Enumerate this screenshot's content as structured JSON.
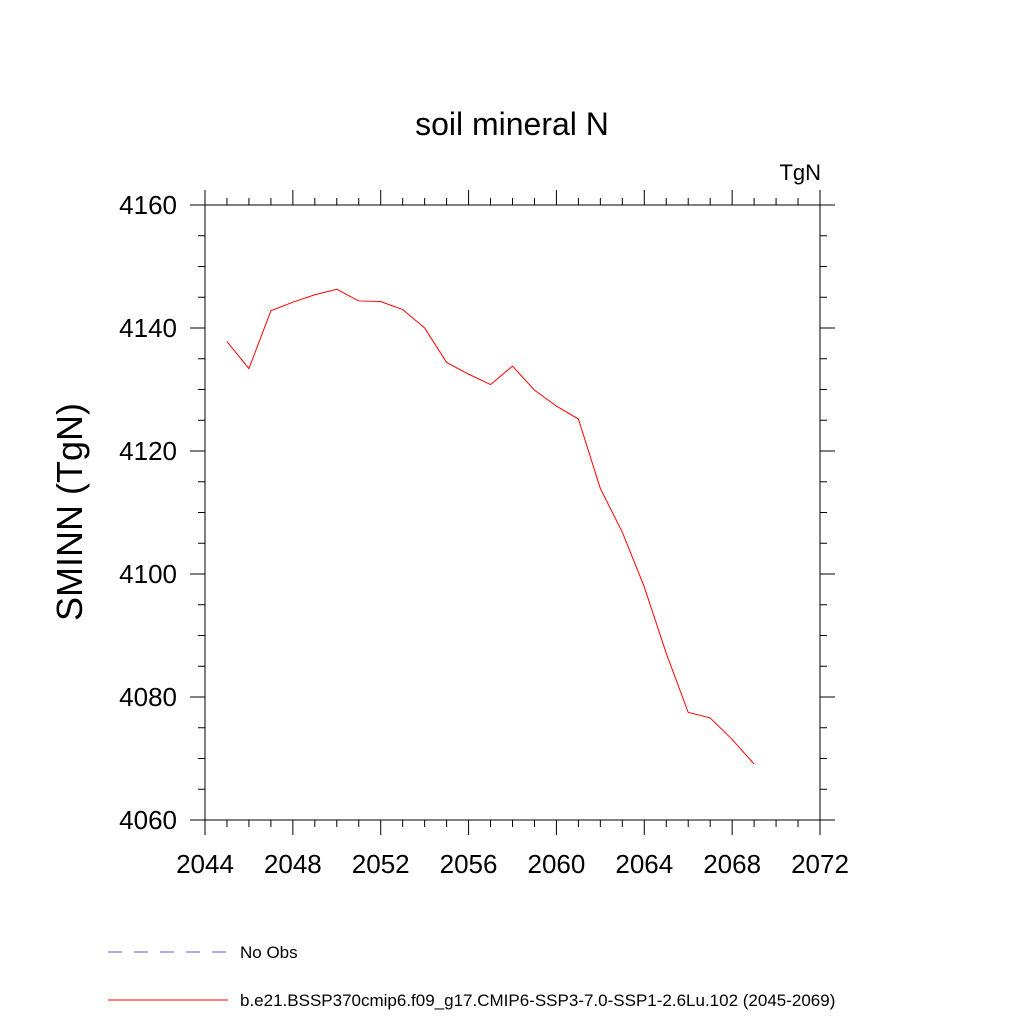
{
  "chart_data": {
    "type": "line",
    "title": "soil mineral N",
    "units": "TgN",
    "ylabel": "SMINN  (TgN)",
    "xlabel": "",
    "xlim": [
      2044,
      2072
    ],
    "ylim": [
      4060,
      4160
    ],
    "x_ticks": [
      2044,
      2048,
      2052,
      2056,
      2060,
      2064,
      2068,
      2072
    ],
    "x_tick_labels": [
      "2044",
      "2048",
      "2052",
      "2056",
      "2060",
      "2064",
      "2068",
      "2072"
    ],
    "x_minor_step": 1,
    "y_ticks": [
      4060,
      4080,
      4100,
      4120,
      4140,
      4160
    ],
    "y_tick_labels": [
      "4060",
      "4080",
      "4100",
      "4120",
      "4140",
      "4160"
    ],
    "y_minor_step": 5,
    "grid": false,
    "legend_position": "bottom",
    "series": [
      {
        "name": "b.e21.BSSP370cmip6.f09_g17.CMIP6-SSP3-7.0-SSP1-2.6Lu.102 (2045-2069)",
        "color": "#ff0000",
        "style": "solid",
        "x": [
          2045,
          2046,
          2047,
          2048,
          2049,
          2050,
          2051,
          2052,
          2053,
          2054,
          2055,
          2056,
          2057,
          2058,
          2059,
          2060,
          2061,
          2062,
          2063,
          2064,
          2065,
          2066,
          2067,
          2068,
          2069
        ],
        "values": [
          4137.8,
          4133.4,
          4142.8,
          4144.2,
          4145.4,
          4146.3,
          4144.4,
          4144.3,
          4143.0,
          4140.0,
          4134.4,
          4132.5,
          4130.8,
          4133.8,
          4129.9,
          4127.3,
          4125.2,
          4113.9,
          4106.8,
          4097.9,
          4087.1,
          4077.5,
          4076.6,
          4073.1,
          4069.1
        ]
      },
      {
        "name": "No Obs",
        "color": "#6a5acd",
        "style": "dashed",
        "x": [],
        "values": []
      }
    ]
  }
}
